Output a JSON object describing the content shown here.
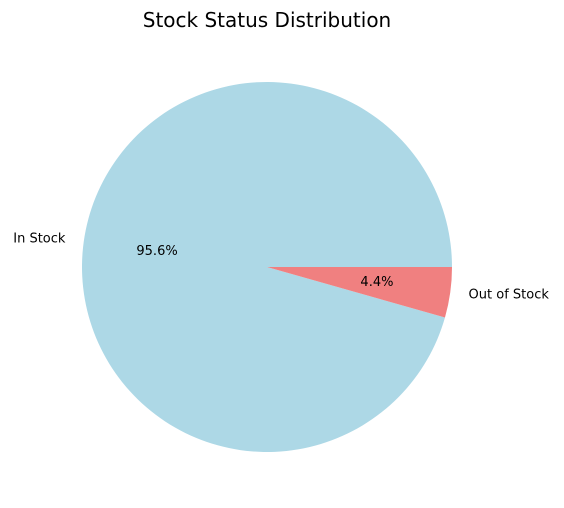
{
  "chart_data": {
    "type": "pie",
    "title": "Stock Status Distribution",
    "categories": [
      "In Stock",
      "Out of Stock"
    ],
    "values": [
      95.6,
      4.4
    ],
    "percent_labels": [
      "95.6%",
      "4.4%"
    ],
    "colors": [
      "#add8e6",
      "#f08080"
    ],
    "start_angle_deg": 0,
    "direction": "counterclockwise"
  }
}
